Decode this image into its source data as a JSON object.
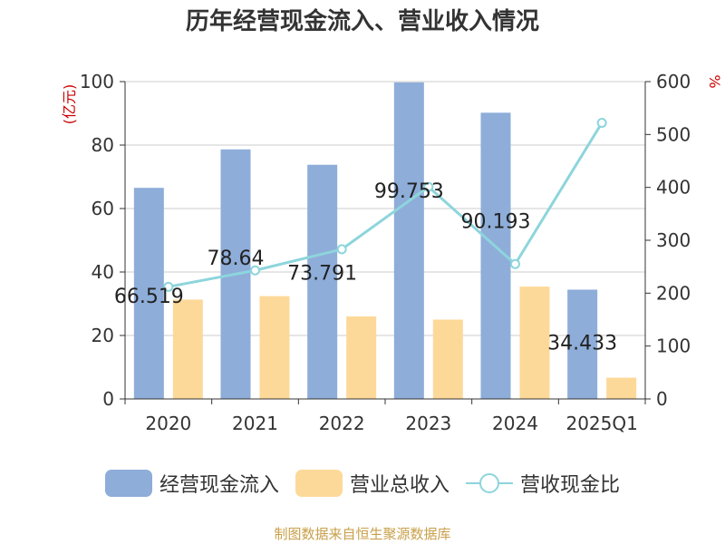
{
  "title": "历年经营现金流入、营业收入情况",
  "source": "制图数据来自恒生聚源数据库",
  "colors": {
    "cash_inflow": "#8eadd9",
    "revenue": "#fdd999",
    "ratio_line": "#8dd5dc",
    "axis_unit": "#cc0000",
    "grid": "#cccccc",
    "axis": "#333333",
    "text": "#333333"
  },
  "chart_data": {
    "type": "bar",
    "title": "历年经营现金流入、营业收入情况",
    "categories": [
      "2020",
      "2021",
      "2022",
      "2023",
      "2024",
      "2025Q1"
    ],
    "left_axis": {
      "unit": "(亿元)",
      "ylim": [
        0,
        100
      ],
      "ticks": [
        "0",
        "20",
        "40",
        "60",
        "80",
        "100"
      ]
    },
    "right_axis": {
      "unit": "%",
      "ylim": [
        0,
        600
      ],
      "ticks": [
        "0",
        "100",
        "200",
        "300",
        "400",
        "500",
        "600"
      ]
    },
    "series": [
      {
        "name": "经营现金流入",
        "type": "bar",
        "axis": "left",
        "values": [
          66.519,
          78.64,
          73.791,
          99.753,
          90.193,
          34.433
        ],
        "labels": [
          "66.519",
          "78.64",
          "73.791",
          "99.753",
          "90.193",
          "34.433"
        ]
      },
      {
        "name": "营业总收入",
        "type": "bar",
        "axis": "left",
        "values": [
          31.3,
          32.4,
          26.0,
          25.0,
          35.4,
          6.7
        ]
      },
      {
        "name": "营收现金比",
        "type": "line",
        "axis": "right",
        "values": [
          212,
          243,
          283,
          401,
          255,
          522
        ]
      }
    ],
    "grid": true,
    "legend_position": "bottom"
  }
}
